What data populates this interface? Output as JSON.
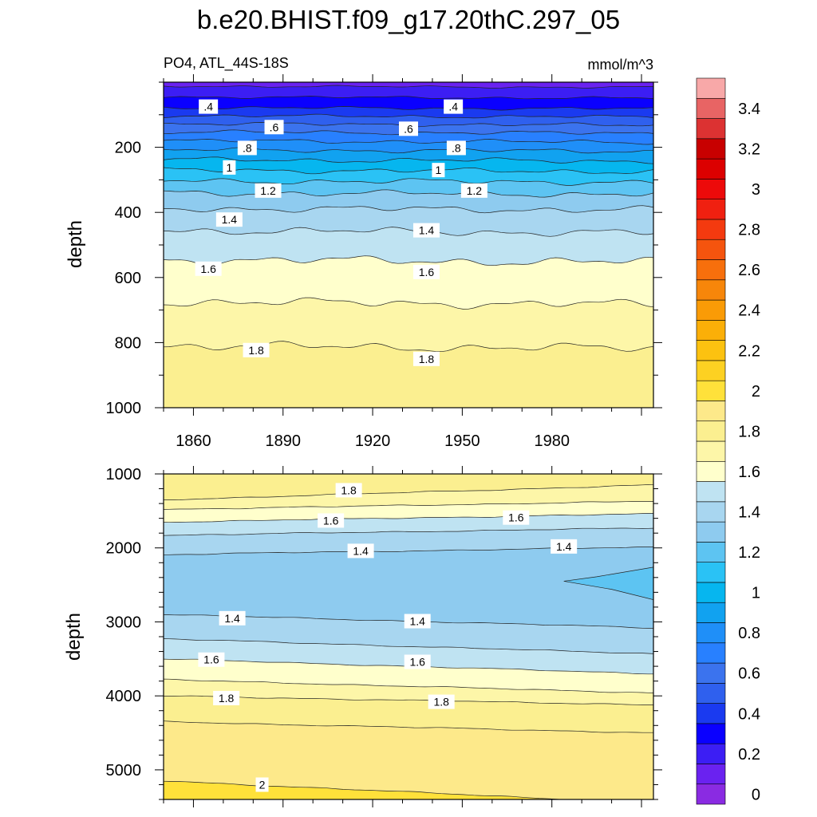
{
  "figure": {
    "title": "b.e20.BHIST.f09_g17.20thC.297_05",
    "left_subtitle": "PO4, ATL_44S-18S",
    "right_subtitle": "mmol/m^3"
  },
  "colorbar": {
    "tick_labels": [
      "0",
      "0.2",
      "0.4",
      "0.6",
      "0.8",
      "1",
      "1.2",
      "1.4",
      "1.6",
      "1.8",
      "2",
      "2.2",
      "2.4",
      "2.6",
      "2.8",
      "3",
      "3.2",
      "3.4"
    ],
    "colors": [
      "#8a2be2",
      "#6a22f0",
      "#3c1ef4",
      "#0a00ff",
      "#1a3af0",
      "#2f60ee",
      "#3b73ee",
      "#2880ff",
      "#1f8ff8",
      "#11a2f0",
      "#06b6ef",
      "#2ac2f5",
      "#5dc4f2",
      "#8ecbef",
      "#a8d6f0",
      "#bfe3f2",
      "#ffffcc",
      "#fdf6a8",
      "#fbef90",
      "#fde98a",
      "#ffe13a",
      "#fdd122",
      "#fcc210",
      "#fbaf08",
      "#fa9b06",
      "#f7860a",
      "#f76f0c",
      "#f5540e",
      "#f43a0f",
      "#f02010",
      "#ed0a0a",
      "#dc0000",
      "#c80000",
      "#dc3232",
      "#e86464",
      "#f8a8a8"
    ]
  },
  "chart_data": [
    {
      "type": "contour",
      "panel": "upper",
      "ylabel": "depth",
      "xlim": [
        1850,
        2014
      ],
      "ylim": [
        0,
        1000
      ],
      "y_inverted": true,
      "xticks": [
        1860,
        1890,
        1920,
        1950,
        1980
      ],
      "xtick_labels": [
        "1860",
        "1890",
        "1920",
        "1950",
        "1980"
      ],
      "yticks": [
        200,
        400,
        600,
        800,
        1000
      ],
      "ytick_labels": [
        "200",
        "400",
        "600",
        "800",
        "1000"
      ],
      "contour_interval": 0.1,
      "contour_levels": [
        0.2,
        0.3,
        0.4,
        0.5,
        0.6,
        0.7,
        0.8,
        0.9,
        1.0,
        1.1,
        1.2,
        1.3,
        1.4,
        1.5,
        1.6,
        1.7,
        1.8
      ],
      "level_depth_profile": [
        {
          "level": 0.2,
          "depth": 12
        },
        {
          "level": 0.3,
          "depth": 45
        },
        {
          "level": 0.4,
          "depth": 78
        },
        {
          "level": 0.5,
          "depth": 103
        },
        {
          "level": 0.6,
          "depth": 128
        },
        {
          "level": 0.7,
          "depth": 153
        },
        {
          "level": 0.8,
          "depth": 180
        },
        {
          "level": 0.9,
          "depth": 208
        },
        {
          "level": 1.0,
          "depth": 238
        },
        {
          "level": 1.1,
          "depth": 270
        },
        {
          "level": 1.2,
          "depth": 303
        },
        {
          "level": 1.3,
          "depth": 340
        },
        {
          "level": 1.4,
          "depth": 388
        },
        {
          "level": 1.5,
          "depth": 455
        },
        {
          "level": 1.6,
          "depth": 545
        },
        {
          "level": 1.7,
          "depth": 675
        },
        {
          "level": 1.8,
          "depth": 810
        }
      ],
      "labels": [
        {
          "text": ".4",
          "x": 1865,
          "y": 75
        },
        {
          "text": ".4",
          "x": 1947,
          "y": 75
        },
        {
          "text": ".6",
          "x": 1887,
          "y": 138
        },
        {
          "text": ".6",
          "x": 1932,
          "y": 143
        },
        {
          "text": ".8",
          "x": 1878,
          "y": 202
        },
        {
          "text": ".8",
          "x": 1948,
          "y": 202
        },
        {
          "text": "1",
          "x": 1872,
          "y": 262
        },
        {
          "text": "1",
          "x": 1942,
          "y": 270
        },
        {
          "text": "1.2",
          "x": 1885,
          "y": 333
        },
        {
          "text": "1.2",
          "x": 1954,
          "y": 333
        },
        {
          "text": "1.4",
          "x": 1872,
          "y": 422
        },
        {
          "text": "1.4",
          "x": 1938,
          "y": 455
        },
        {
          "text": "1.6",
          "x": 1865,
          "y": 573
        },
        {
          "text": "1.6",
          "x": 1938,
          "y": 583
        },
        {
          "text": "1.8",
          "x": 1881,
          "y": 823
        },
        {
          "text": "1.8",
          "x": 1938,
          "y": 850
        }
      ]
    },
    {
      "type": "contour",
      "panel": "lower",
      "ylabel": "depth",
      "xlim": [
        1850,
        2014
      ],
      "ylim": [
        1000,
        5400
      ],
      "y_inverted": true,
      "yticks": [
        1000,
        2000,
        3000,
        4000,
        5000
      ],
      "ytick_labels": [
        "1000",
        "2000",
        "3000",
        "4000",
        "5000"
      ],
      "contour_interval": 0.1,
      "contour_levels": [
        1.3,
        1.4,
        1.5,
        1.6,
        1.7,
        1.8,
        1.9,
        2.0
      ],
      "level_depth_profile": [
        {
          "level": 1.8,
          "depth": 1350,
          "trend": "shoaling to 1150 by 2014"
        },
        {
          "level": 1.7,
          "depth": 1480
        },
        {
          "level": 1.6,
          "depth": 1650
        },
        {
          "level": 1.5,
          "depth": 1830
        },
        {
          "level": 1.4,
          "depth": 2090
        },
        {
          "level": 1.3,
          "depth": 2450,
          "note": "tongue from 1984 to 2014"
        },
        {
          "level": 1.4,
          "depth": 2900
        },
        {
          "level": 1.5,
          "depth": 3230
        },
        {
          "level": 1.6,
          "depth": 3500
        },
        {
          "level": 1.7,
          "depth": 3780
        },
        {
          "level": 1.8,
          "depth": 4000
        },
        {
          "level": 1.9,
          "depth": 4350
        },
        {
          "level": 2.0,
          "depth": 5150
        }
      ],
      "labels": [
        {
          "text": "1.8",
          "x": 1912,
          "y": 1220
        },
        {
          "text": "1.6",
          "x": 1906,
          "y": 1630
        },
        {
          "text": "1.6",
          "x": 1968,
          "y": 1590
        },
        {
          "text": "1.4",
          "x": 1916,
          "y": 2040
        },
        {
          "text": "1.4",
          "x": 1984,
          "y": 1980
        },
        {
          "text": "1.4",
          "x": 1873,
          "y": 2950
        },
        {
          "text": "1.4",
          "x": 1935,
          "y": 2990
        },
        {
          "text": "1.6",
          "x": 1866,
          "y": 3510
        },
        {
          "text": "1.6",
          "x": 1935,
          "y": 3540
        },
        {
          "text": "1.8",
          "x": 1871,
          "y": 4030
        },
        {
          "text": "1.8",
          "x": 1943,
          "y": 4080
        },
        {
          "text": "2",
          "x": 1883,
          "y": 5200
        }
      ]
    }
  ]
}
